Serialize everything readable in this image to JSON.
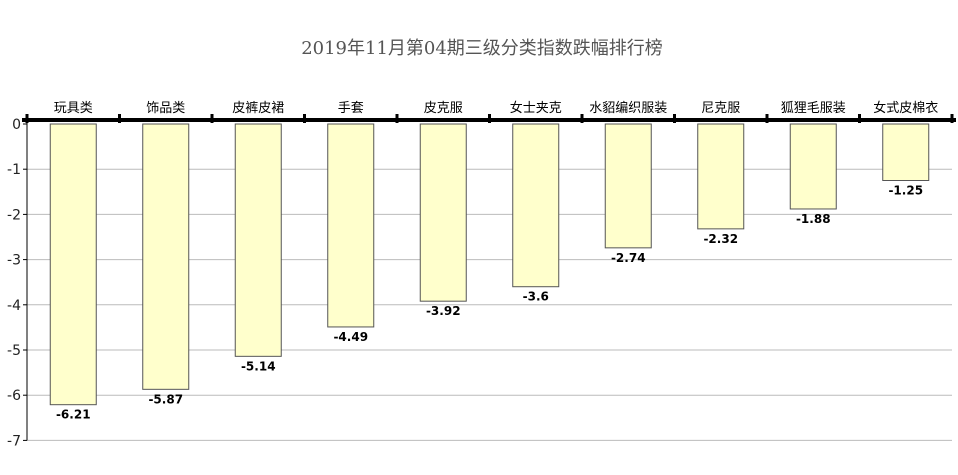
{
  "chart_data": {
    "type": "bar",
    "title": "2019年11月第04期三级分类指数跌幅排行榜",
    "categories": [
      "玩具类",
      "饰品类",
      "皮裤皮裙",
      "手套",
      "皮克服",
      "女士夹克",
      "水貂编织服装",
      "尼克服",
      "狐狸毛服装",
      "女式皮棉衣"
    ],
    "values": [
      -6.21,
      -5.87,
      -5.14,
      -4.49,
      -3.92,
      -3.6,
      -2.74,
      -2.32,
      -1.88,
      -1.25
    ],
    "data_labels": [
      "-6.21",
      "-5.87",
      "-5.14",
      "-4.49",
      "-3.92",
      "-3.6",
      "-2.74",
      "-2.32",
      "-1.88",
      "-1.25"
    ],
    "yticks": [
      0,
      -1,
      -2,
      -3,
      -4,
      -5,
      -6,
      -7
    ],
    "ytick_labels": [
      "0",
      "-1",
      "-2",
      "-3",
      "-4",
      "-5",
      "-6",
      "-7"
    ],
    "ylim": [
      -7,
      0
    ],
    "xaxis_position": "top",
    "grid": true,
    "legend": "none",
    "bar_color": "#ffffcc",
    "bar_edge_color": "#555555",
    "grid_color": "#bbbbbb",
    "axis_color": "#000000"
  }
}
